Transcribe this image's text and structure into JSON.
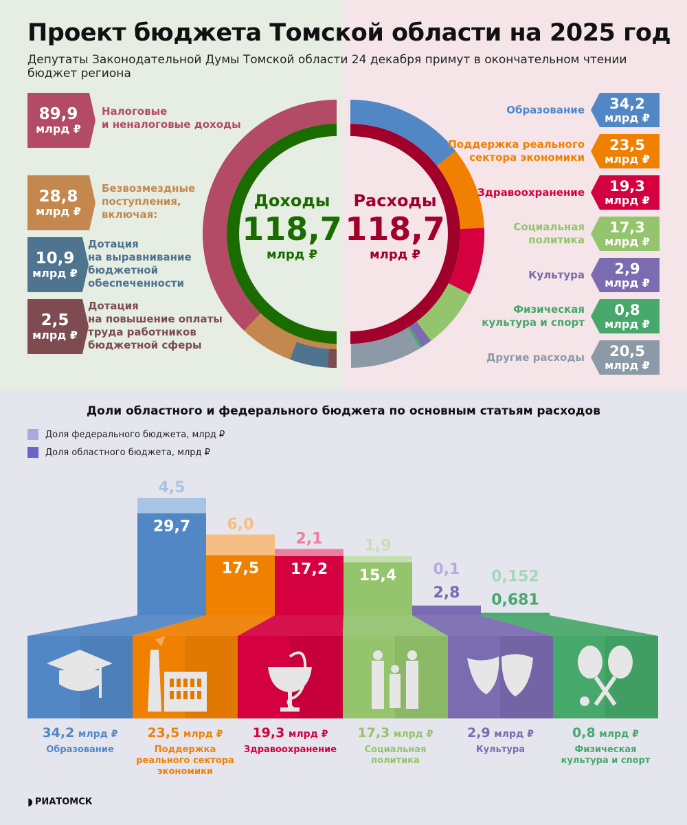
{
  "title": "Проект бюджета Томской области на 2025 год",
  "subtitle": "Депутаты Законодательной Думы Томской области 24 декабря примут в окончательном чтении бюджет региона",
  "unit": "млрд ₽",
  "income": {
    "label": "Доходы",
    "total": "118,7",
    "color": "#1a6b00",
    "items": [
      {
        "value": "89,9",
        "num": 89.9,
        "label": "Налоговые\nи неналоговые доходы",
        "color": "#b34a66"
      },
      {
        "value": "28,8",
        "num": 28.8,
        "label": "Безвозмездные\nпоступления,\nвключая:",
        "color": "#c4884f"
      },
      {
        "value": "10,9",
        "num": 10.9,
        "label": "Дотация\nна выравнивание\nбюджетной\nобеспеченности",
        "color": "#4e7490"
      },
      {
        "value": "2,5",
        "num": 2.5,
        "label": "Дотация\nна повышение оплаты\nтруда работников\nбюджетной сферы",
        "color": "#7e4b50"
      }
    ]
  },
  "expense": {
    "label": "Расходы",
    "total": "118,7",
    "color": "#a0002a",
    "items": [
      {
        "value": "34,2",
        "num": 34.2,
        "label": "Образование",
        "color": "#5287c6"
      },
      {
        "value": "23,5",
        "num": 23.5,
        "label": "Поддержка реального\nсектора экономики",
        "color": "#f08000"
      },
      {
        "value": "19,3",
        "num": 19.3,
        "label": "Здравоохранение",
        "color": "#d4003f"
      },
      {
        "value": "17,3",
        "num": 17.3,
        "label": "Социальная\nполитика",
        "color": "#94c46c"
      },
      {
        "value": "2,9",
        "num": 2.9,
        "label": "Культура",
        "color": "#7b6bb0"
      },
      {
        "value": "0,8",
        "num": 0.8,
        "label": "Физическая\nкультура и спорт",
        "color": "#46a86a"
      },
      {
        "value": "20,5",
        "num": 20.5,
        "label": "Другие расходы",
        "color": "#8b9aa6"
      }
    ]
  },
  "chart_data": {
    "type": "bar",
    "title": "Доли областного и федерального бюджета по основным статьям расходов",
    "legend": [
      {
        "label": "Доля федерального бюджета, млрд ₽",
        "color": "#aaa8dc"
      },
      {
        "label": "Доля областного бюджета, млрд ₽",
        "color": "#6a66c8"
      }
    ],
    "categories": [
      "Образование",
      "Поддержка реального сектора экономики",
      "Здравоохранение",
      "Социальная политика",
      "Культура",
      "Физическая культура и спорт"
    ],
    "series": [
      {
        "name": "Доля областного бюджета",
        "values": [
          29.7,
          17.5,
          17.2,
          15.4,
          2.8,
          0.681
        ],
        "labels": [
          "29,7",
          "17,5",
          "17,2",
          "15,4",
          "2,8",
          "0,681"
        ]
      },
      {
        "name": "Доля федерального бюджета",
        "values": [
          4.5,
          6.0,
          2.1,
          1.9,
          0.1,
          0.152
        ],
        "labels": [
          "4,5",
          "6,0",
          "2,1",
          "1,9",
          "0,1",
          "0,152"
        ]
      }
    ],
    "totals": [
      "34,2",
      "23,5",
      "19,3",
      "17,3",
      "2,9",
      "0,8"
    ],
    "category_labels": [
      "Образование",
      "Поддержка\nреального сектора\nэкономики",
      "Здравоохранение",
      "Социальная\nполитика",
      "Культура",
      "Физическая\nкультура и спорт"
    ],
    "colors": [
      "#5287c6",
      "#f08000",
      "#d4003f",
      "#94c46c",
      "#7b6bb0",
      "#46a86a"
    ],
    "light_colors": [
      "#a8c4e4",
      "#f7be84",
      "#e8809e",
      "#c7e0b1",
      "#b5acd8",
      "#a6d8b8"
    ],
    "icons": [
      "graduation-cap-icon",
      "factory-icon",
      "medicine-bowl-icon",
      "family-icon",
      "theatre-masks-icon",
      "rackets-icon"
    ]
  },
  "logo": "РИАТОМСК"
}
